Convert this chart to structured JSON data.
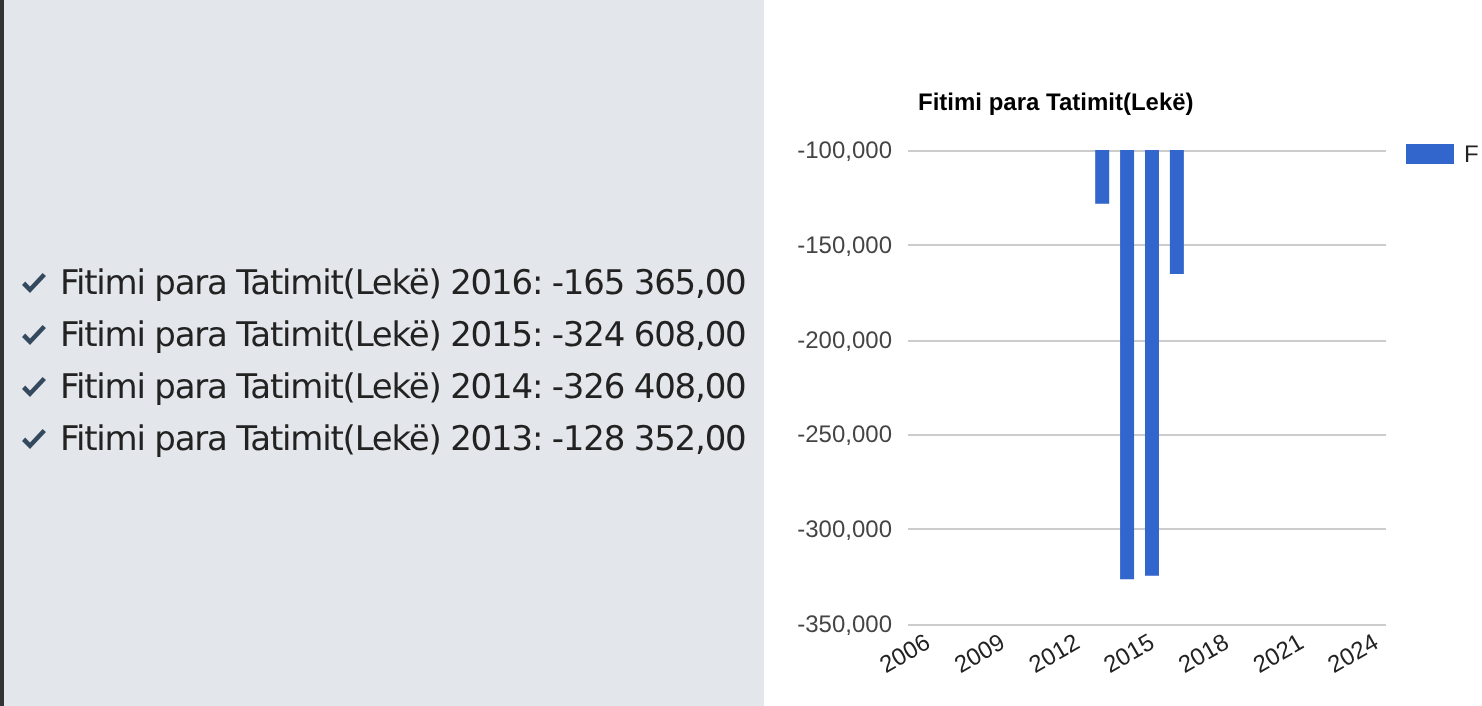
{
  "chart_data": {
    "type": "bar",
    "title": "Fitimi para Tatimit(Lekë)",
    "x": [
      2013,
      2014,
      2015,
      2016
    ],
    "series": [
      {
        "name": "F",
        "color": "#3366cc",
        "values": [
          -128352,
          -326408,
          -324608,
          -165365
        ]
      }
    ],
    "xlim": [
      2005.2,
      2024.4
    ],
    "xticks": [
      2006,
      2009,
      2012,
      2015,
      2018,
      2021,
      2024
    ],
    "ylim": [
      -350000,
      -100000
    ],
    "yticks": [
      {
        "value": -350000,
        "label": "-350,000"
      },
      {
        "value": -300000,
        "label": "-300,000"
      },
      {
        "value": -250000,
        "label": "-250,000"
      },
      {
        "value": -200000,
        "label": "-200,000"
      },
      {
        "value": -150000,
        "label": "-150,000"
      },
      {
        "value": -100000,
        "label": "-100,000"
      }
    ],
    "grid": "y",
    "legend": "top right",
    "annotations": [
      "Fitimi para Tatimit(Lekë) 2016: -165 365,00",
      "Fitimi para Tatimit(Lekë) 2015: -324 608,00",
      "Fitimi para Tatimit(Lekë) 2014: -326 408,00",
      "Fitimi para Tatimit(Lekë) 2013: -128 352,00"
    ]
  }
}
